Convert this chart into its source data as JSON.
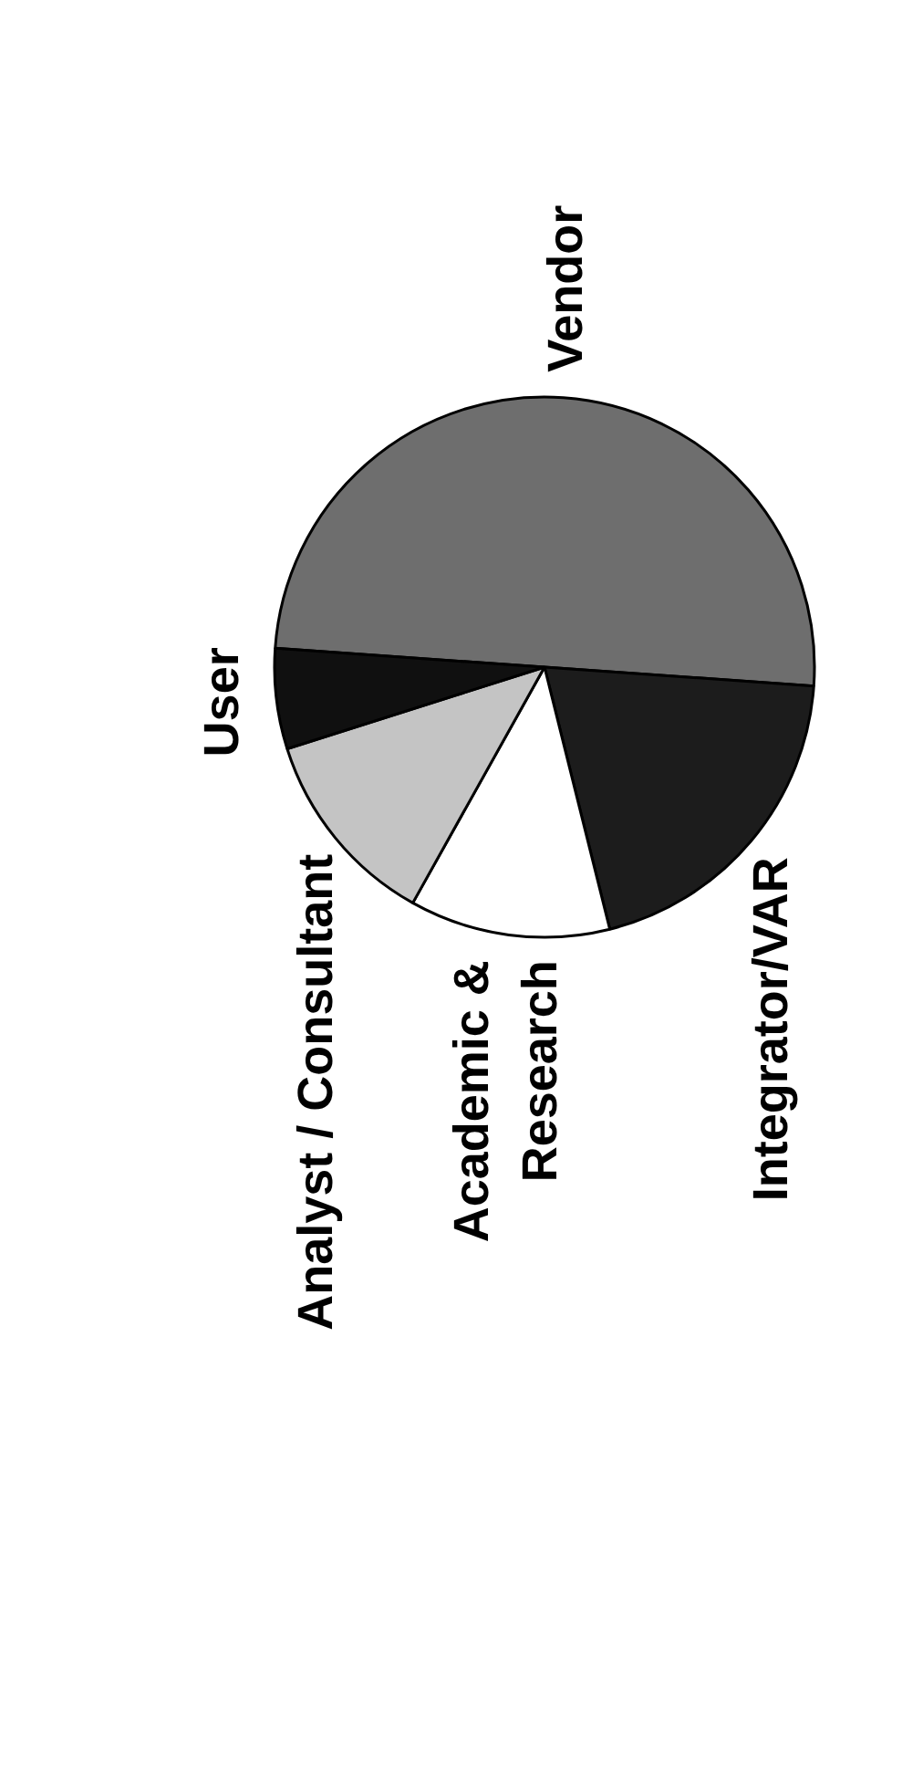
{
  "chart_data": {
    "type": "pie",
    "categories": [
      "Vendor",
      "Integrator/VAR",
      "Academic &\nResearch",
      "Analyst / Consultant",
      "User"
    ],
    "values": [
      50,
      20,
      12,
      12,
      6
    ],
    "colors": [
      "#6e6e6e",
      "#1c1c1c",
      "#ffffff",
      "#c4c4c4",
      "#101010"
    ]
  }
}
